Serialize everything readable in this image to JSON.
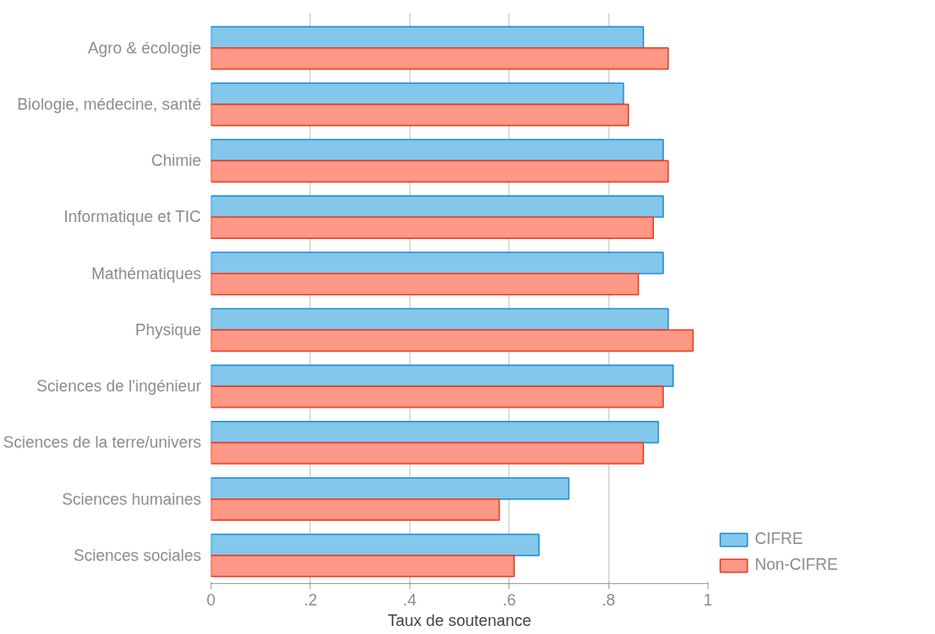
{
  "chart_data": {
    "type": "bar",
    "orientation": "horizontal",
    "xlabel": "Taux de soutenance",
    "categories": [
      "Agro & écologie",
      "Biologie, médecine, santé",
      "Chimie",
      "Informatique et TIC",
      "Mathématiques",
      "Physique",
      "Sciences de l'ingénieur",
      "Sciences de la terre/univers",
      "Sciences humaines",
      "Sciences sociales"
    ],
    "series": [
      {
        "name": "CIFRE",
        "color": "#83c7ea",
        "values": [
          0.87,
          0.83,
          0.91,
          0.91,
          0.91,
          0.92,
          0.93,
          0.9,
          0.72,
          0.66
        ]
      },
      {
        "name": "Non-CIFRE",
        "color": "#ff9886",
        "values": [
          0.92,
          0.84,
          0.92,
          0.89,
          0.86,
          0.97,
          0.91,
          0.87,
          0.58,
          0.61
        ]
      }
    ],
    "xlim": [
      0,
      1
    ],
    "xticks": [
      0,
      {
        "value": 0.2,
        "label": ".2"
      },
      {
        "value": 0.4,
        "label": ".4"
      },
      {
        "value": 0.6,
        "label": ".6"
      },
      {
        "value": 0.8,
        "label": ".8"
      },
      1
    ],
    "grid": "x",
    "legend": "bottom right"
  }
}
